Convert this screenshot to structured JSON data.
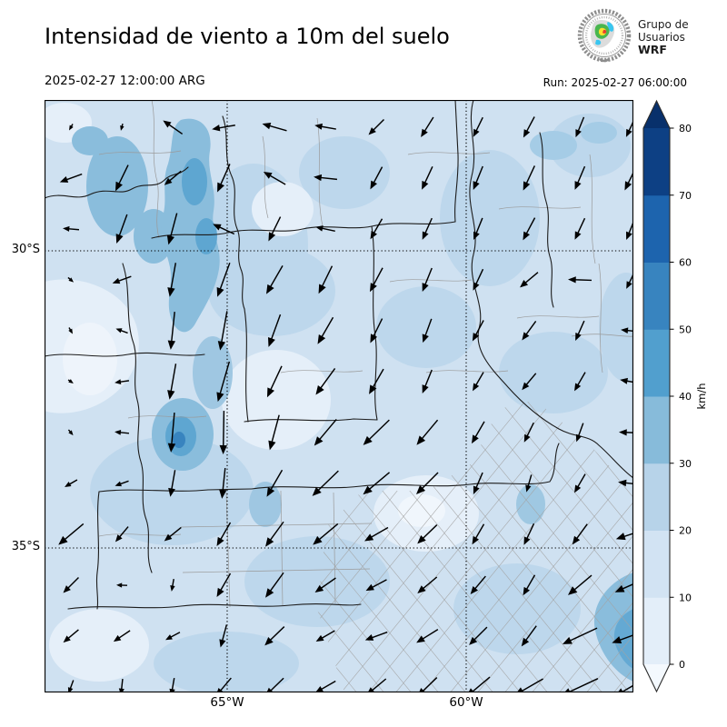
{
  "header": {
    "title": "Intensidad de viento a 10m del suelo",
    "valid_time": "2025-02-27 12:00:00 ARG",
    "run_label": "Run: 2025-02-27 06:00:00",
    "logo": {
      "line1": "Grupo de",
      "line2": "Usuarios",
      "line3": "WRF"
    }
  },
  "map": {
    "y_ticks": [
      {
        "label": "30°S",
        "y": 166
      },
      {
        "label": "35°S",
        "y": 493
      }
    ],
    "x_ticks": [
      {
        "label": "65°W",
        "x": 201
      },
      {
        "label": "60°W",
        "x": 464
      }
    ]
  },
  "colorbar": {
    "unit": "km/h",
    "tick_labels": [
      "0",
      "10",
      "20",
      "30",
      "40",
      "50",
      "60",
      "70",
      "80"
    ],
    "segment_colors_bottom_up": [
      "#e3eef9",
      "#d2e3f3",
      "#b7d3e9",
      "#87bbda",
      "#519fce",
      "#3884bf",
      "#1d64ae",
      "#0d4084"
    ],
    "under_color": "#f4f9fe",
    "over_color": "#08306b"
  },
  "wind_field": {
    "arrow_color": "#000000",
    "arrows": [
      [
        29,
        30,
        120,
        8
      ],
      [
        85,
        30,
        105,
        8
      ],
      [
        141,
        30,
        215,
        26
      ],
      [
        197,
        30,
        170,
        26
      ],
      [
        253,
        30,
        196,
        28
      ],
      [
        309,
        30,
        190,
        24
      ],
      [
        365,
        30,
        135,
        24
      ],
      [
        421,
        30,
        122,
        26
      ],
      [
        477,
        30,
        116,
        24
      ],
      [
        533,
        30,
        118,
        26
      ],
      [
        589,
        30,
        112,
        24
      ],
      [
        645,
        30,
        115,
        24
      ],
      [
        29,
        86,
        160,
        26
      ],
      [
        85,
        86,
        116,
        32
      ],
      [
        141,
        86,
        140,
        24
      ],
      [
        197,
        86,
        114,
        34
      ],
      [
        253,
        86,
        210,
        28
      ],
      [
        309,
        86,
        186,
        26
      ],
      [
        365,
        86,
        118,
        28
      ],
      [
        421,
        86,
        115,
        28
      ],
      [
        477,
        86,
        112,
        28
      ],
      [
        533,
        86,
        115,
        30
      ],
      [
        589,
        86,
        113,
        28
      ],
      [
        645,
        86,
        116,
        30
      ],
      [
        29,
        142,
        185,
        18
      ],
      [
        85,
        142,
        110,
        34
      ],
      [
        141,
        142,
        105,
        36
      ],
      [
        197,
        142,
        205,
        26
      ],
      [
        253,
        142,
        116,
        30
      ],
      [
        309,
        142,
        192,
        22
      ],
      [
        365,
        142,
        120,
        26
      ],
      [
        421,
        142,
        114,
        26
      ],
      [
        477,
        142,
        112,
        26
      ],
      [
        533,
        142,
        118,
        28
      ],
      [
        589,
        142,
        115,
        26
      ],
      [
        645,
        142,
        112,
        26
      ],
      [
        29,
        198,
        40,
        8
      ],
      [
        85,
        198,
        160,
        22
      ],
      [
        141,
        198,
        100,
        38
      ],
      [
        197,
        198,
        110,
        40
      ],
      [
        253,
        198,
        120,
        36
      ],
      [
        309,
        198,
        116,
        34
      ],
      [
        365,
        198,
        118,
        30
      ],
      [
        421,
        198,
        112,
        28
      ],
      [
        477,
        198,
        115,
        26
      ],
      [
        533,
        198,
        140,
        26
      ],
      [
        589,
        198,
        182,
        26
      ],
      [
        645,
        198,
        116,
        22
      ],
      [
        29,
        254,
        60,
        8
      ],
      [
        85,
        254,
        200,
        14
      ],
      [
        141,
        254,
        96,
        42
      ],
      [
        197,
        254,
        100,
        44
      ],
      [
        253,
        254,
        110,
        38
      ],
      [
        309,
        254,
        120,
        34
      ],
      [
        365,
        254,
        116,
        30
      ],
      [
        421,
        254,
        110,
        28
      ],
      [
        477,
        254,
        118,
        26
      ],
      [
        533,
        254,
        126,
        26
      ],
      [
        589,
        254,
        114,
        24
      ],
      [
        645,
        254,
        186,
        22
      ],
      [
        29,
        310,
        35,
        7
      ],
      [
        85,
        310,
        172,
        16
      ],
      [
        141,
        310,
        100,
        40
      ],
      [
        197,
        310,
        106,
        46
      ],
      [
        253,
        310,
        115,
        38
      ],
      [
        309,
        310,
        126,
        36
      ],
      [
        365,
        310,
        120,
        32
      ],
      [
        421,
        310,
        112,
        28
      ],
      [
        477,
        310,
        120,
        24
      ],
      [
        533,
        310,
        130,
        24
      ],
      [
        589,
        310,
        120,
        24
      ],
      [
        645,
        310,
        190,
        24
      ],
      [
        29,
        366,
        50,
        8
      ],
      [
        85,
        366,
        186,
        16
      ],
      [
        141,
        366,
        95,
        44
      ],
      [
        197,
        366,
        91,
        48
      ],
      [
        253,
        366,
        105,
        40
      ],
      [
        309,
        366,
        130,
        38
      ],
      [
        365,
        366,
        136,
        40
      ],
      [
        421,
        366,
        130,
        36
      ],
      [
        477,
        366,
        120,
        28
      ],
      [
        533,
        366,
        116,
        24
      ],
      [
        589,
        366,
        110,
        22
      ],
      [
        645,
        366,
        182,
        26
      ],
      [
        29,
        422,
        150,
        16
      ],
      [
        85,
        422,
        160,
        16
      ],
      [
        141,
        422,
        100,
        30
      ],
      [
        197,
        422,
        96,
        34
      ],
      [
        253,
        422,
        120,
        34
      ],
      [
        309,
        422,
        136,
        40
      ],
      [
        365,
        422,
        140,
        38
      ],
      [
        421,
        422,
        135,
        34
      ],
      [
        477,
        422,
        113,
        26
      ],
      [
        533,
        422,
        106,
        20
      ],
      [
        589,
        422,
        120,
        24
      ],
      [
        645,
        422,
        186,
        28
      ],
      [
        29,
        478,
        140,
        36
      ],
      [
        85,
        478,
        130,
        22
      ],
      [
        141,
        478,
        141,
        24
      ],
      [
        197,
        478,
        120,
        30
      ],
      [
        253,
        478,
        126,
        34
      ],
      [
        309,
        478,
        140,
        36
      ],
      [
        365,
        478,
        150,
        30
      ],
      [
        421,
        478,
        136,
        30
      ],
      [
        477,
        478,
        120,
        26
      ],
      [
        533,
        478,
        115,
        26
      ],
      [
        589,
        478,
        126,
        28
      ],
      [
        645,
        478,
        162,
        34
      ],
      [
        29,
        534,
        135,
        24
      ],
      [
        85,
        534,
        182,
        12
      ],
      [
        141,
        534,
        100,
        14
      ],
      [
        197,
        534,
        120,
        30
      ],
      [
        253,
        534,
        126,
        34
      ],
      [
        309,
        534,
        145,
        28
      ],
      [
        365,
        534,
        152,
        26
      ],
      [
        421,
        534,
        140,
        28
      ],
      [
        477,
        534,
        130,
        26
      ],
      [
        533,
        534,
        120,
        26
      ],
      [
        589,
        534,
        140,
        34
      ],
      [
        645,
        534,
        156,
        38
      ],
      [
        29,
        590,
        140,
        22
      ],
      [
        85,
        590,
        146,
        22
      ],
      [
        141,
        590,
        152,
        18
      ],
      [
        197,
        590,
        105,
        26
      ],
      [
        253,
        590,
        136,
        30
      ],
      [
        309,
        590,
        150,
        24
      ],
      [
        365,
        590,
        160,
        26
      ],
      [
        421,
        590,
        148,
        28
      ],
      [
        477,
        590,
        135,
        28
      ],
      [
        533,
        590,
        126,
        28
      ],
      [
        589,
        590,
        155,
        42
      ],
      [
        645,
        590,
        160,
        44
      ],
      [
        29,
        646,
        110,
        16
      ],
      [
        85,
        646,
        96,
        18
      ],
      [
        141,
        646,
        100,
        20
      ],
      [
        197,
        646,
        130,
        26
      ],
      [
        253,
        646,
        136,
        28
      ],
      [
        309,
        646,
        150,
        26
      ],
      [
        365,
        646,
        140,
        28
      ],
      [
        421,
        646,
        136,
        30
      ],
      [
        477,
        646,
        140,
        34
      ],
      [
        533,
        646,
        150,
        36
      ],
      [
        589,
        646,
        155,
        44
      ],
      [
        645,
        646,
        150,
        40
      ]
    ]
  }
}
